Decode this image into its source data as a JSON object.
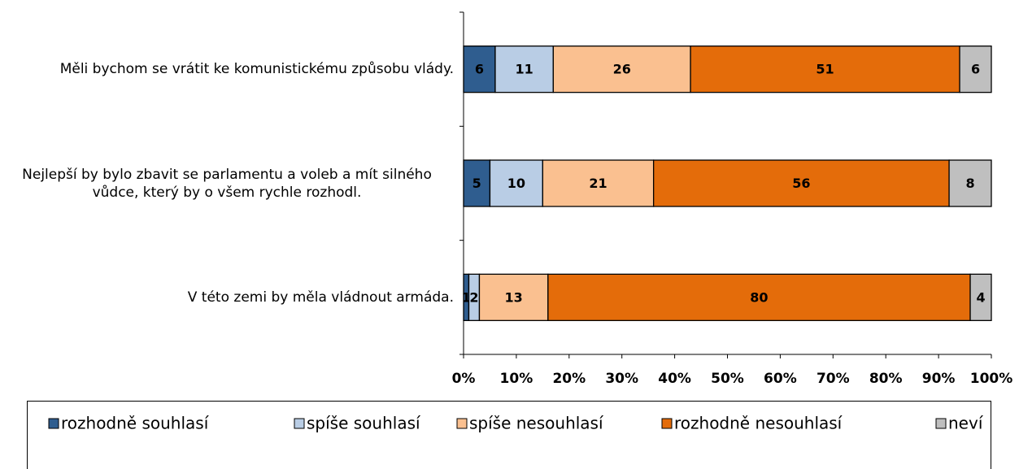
{
  "chart_data": {
    "type": "stacked-bar-horizontal",
    "categories": [
      "Měli bychom se vrátit ke komunistickému způsobu vlády.",
      "Nejlepší by bylo zbavit se parlamentu a voleb a mít silného vůdce, který by o všem rychle rozhodl.",
      "V této zemi by měla vládnout armáda."
    ],
    "series": [
      {
        "name": "rozhodně souhlasí",
        "color": "#2f5d8f",
        "values": [
          6,
          5,
          1
        ]
      },
      {
        "name": "spíše souhlasí",
        "color": "#b9cde5",
        "values": [
          11,
          10,
          2
        ]
      },
      {
        "name": "spíše nesouhlasí",
        "color": "#fac090",
        "values": [
          26,
          21,
          13
        ]
      },
      {
        "name": "rozhodně nesouhlasí",
        "color": "#e46c0a",
        "values": [
          51,
          56,
          80
        ]
      },
      {
        "name": "neví",
        "color": "#bfbfbf",
        "values": [
          6,
          8,
          4
        ]
      }
    ],
    "xlim": [
      0,
      100
    ],
    "xticks": [
      {
        "value": 0,
        "label": "0%"
      },
      {
        "value": 10,
        "label": "10%"
      },
      {
        "value": 20,
        "label": "20%"
      },
      {
        "value": 30,
        "label": "30%"
      },
      {
        "value": 40,
        "label": "40%"
      },
      {
        "value": 50,
        "label": "50%"
      },
      {
        "value": 60,
        "label": "60%"
      },
      {
        "value": 70,
        "label": "70%"
      },
      {
        "value": 80,
        "label": "80%"
      },
      {
        "value": 90,
        "label": "90%"
      },
      {
        "value": 100,
        "label": "100%"
      }
    ],
    "legend": "bottom"
  }
}
